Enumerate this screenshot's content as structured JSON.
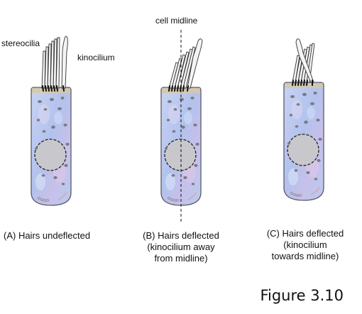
{
  "labels": {
    "stereocilia": "stereocilia",
    "kinocilium": "kinocilium",
    "midline": "cell midline"
  },
  "cells": [
    {
      "id": "A",
      "caption_lines": [
        "(A) Hairs undeflected"
      ]
    },
    {
      "id": "B",
      "caption_lines": [
        "(B) Hairs deflected",
        "(kinocilium away",
        "from midline)"
      ]
    },
    {
      "id": "C",
      "caption_lines": [
        "(C) Hairs deflected",
        "(kinocilium",
        "towards midline)"
      ]
    }
  ],
  "figure_label": "Figure 3.10",
  "colors": {
    "cell_fill": "#b9c6ef",
    "cell_outline": "#5a5a6a",
    "cell_top": "#d8c8a4",
    "nucleus_fill": "#c8c8cc",
    "hair_fill": "#f4f4f4",
    "granule": "#7a7a80"
  }
}
